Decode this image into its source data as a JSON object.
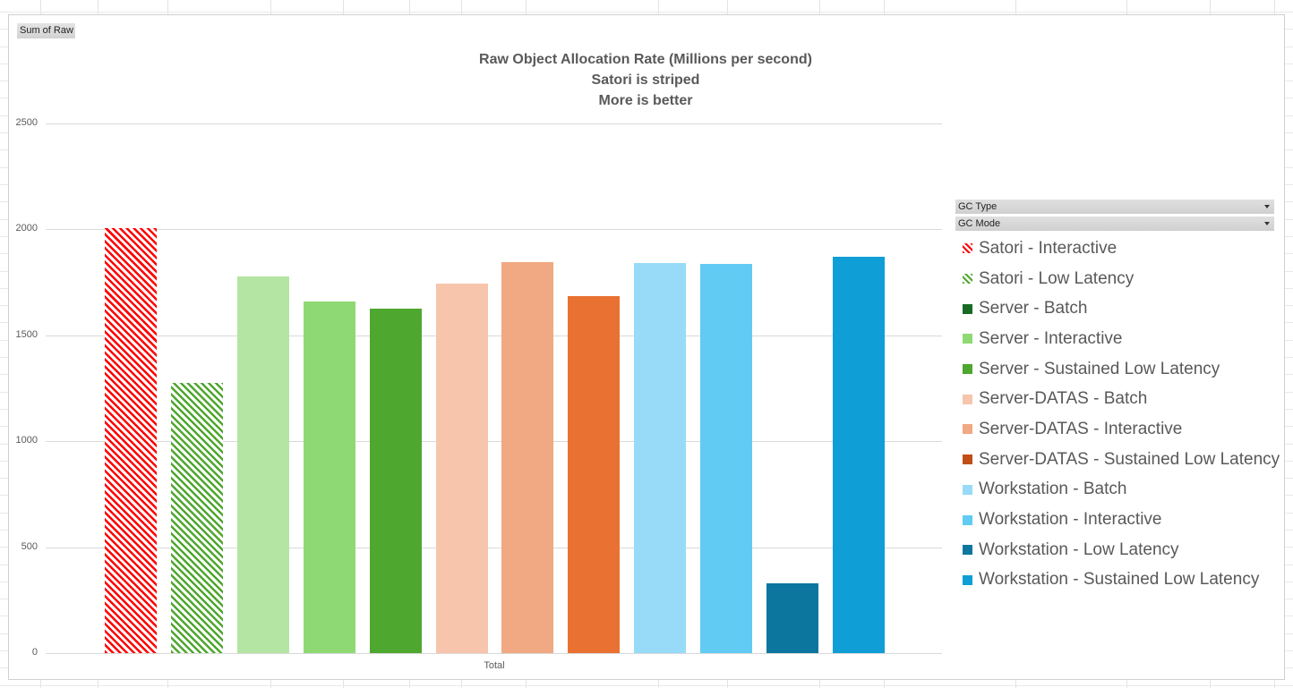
{
  "pivot": {
    "value_field_button": "Sum of Raw",
    "filters": [
      {
        "label": "GC Type"
      },
      {
        "label": "GC Mode"
      }
    ]
  },
  "chart_data": {
    "type": "bar",
    "title": "Raw Object Allocation Rate (Millions per second)",
    "subtitle_lines": [
      "Satori is striped",
      "More is better"
    ],
    "xlabel": "",
    "ylabel": "",
    "categories": [
      "Total"
    ],
    "ylim": [
      0,
      2500
    ],
    "yticks": [
      0,
      500,
      1000,
      1500,
      2000,
      2500
    ],
    "grid": true,
    "legend_position": "right",
    "series": [
      {
        "name": "Satori - Interactive",
        "values": [
          2005
        ],
        "color": "#ff0000",
        "pattern": "striped"
      },
      {
        "name": "Satori - Low Latency",
        "values": [
          1275
        ],
        "color": "#4ea72e",
        "pattern": "striped"
      },
      {
        "name": "Server - Batch",
        "values": [
          1778
        ],
        "color": "#b4e5a2",
        "legend_color": "#196b24"
      },
      {
        "name": "Server - Interactive",
        "values": [
          1660
        ],
        "color": "#8ed973"
      },
      {
        "name": "Server - Sustained Low Latency",
        "values": [
          1626
        ],
        "color": "#4ea72e"
      },
      {
        "name": "Server-DATAS - Batch",
        "values": [
          1744
        ],
        "color": "#f6c5ac"
      },
      {
        "name": "Server-DATAS - Interactive",
        "values": [
          1845
        ],
        "color": "#f1a983"
      },
      {
        "name": "Server-DATAS - Sustained Low Latency",
        "values": [
          1685
        ],
        "color": "#e97132",
        "legend_color": "#c04f15"
      },
      {
        "name": "Workstation - Batch",
        "values": [
          1841
        ],
        "color": "#97dbf8"
      },
      {
        "name": "Workstation - Interactive",
        "values": [
          1837
        ],
        "color": "#61cbf3"
      },
      {
        "name": "Workstation - Low Latency",
        "values": [
          329
        ],
        "color": "#0c769e"
      },
      {
        "name": "Workstation - Sustained Low Latency",
        "values": [
          1871
        ],
        "color": "#0f9ed5"
      }
    ]
  }
}
